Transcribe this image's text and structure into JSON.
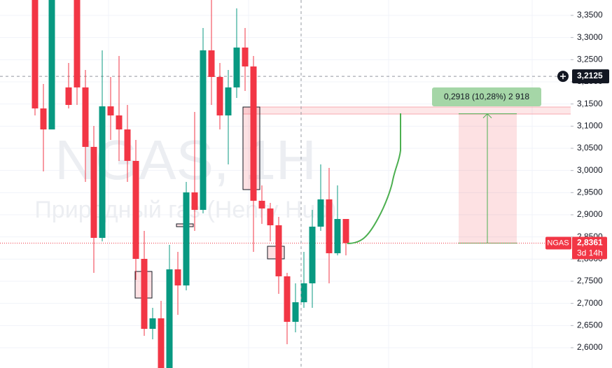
{
  "chart_data": {
    "type": "candlestick",
    "title": "NGAS, 1H",
    "subtitle": "Природный газ (Henry Hub)",
    "categories": [
      null,
      null,
      null,
      null,
      null,
      null,
      null,
      null,
      null,
      null,
      null,
      null,
      null,
      null,
      null,
      null,
      null,
      null,
      null,
      null,
      null,
      null,
      null,
      null,
      null,
      null,
      null,
      null,
      null,
      null,
      null,
      null,
      null,
      null,
      null,
      null,
      null,
      null
    ],
    "open": [
      3.4005,
      3.14,
      3.0926,
      null,
      3.1874,
      3.4005,
      3.1874,
      3.0532,
      2.8479,
      3.1447,
      3.1242,
      3.0926,
      3.0216,
      2.8005,
      2.6426,
      2.6663,
      2.5479,
      2.7768,
      2.7405,
      2.9505,
      2.9111,
      3.2711,
      3.211,
      3.1242,
      3.1874,
      3.2774,
      3.2347,
      2.9316,
      2.9142,
      2.8763,
      2.7611,
      2.6584,
      2.7026,
      2.7453,
      2.8732,
      2.9347,
      2.8132,
      2.8905
    ],
    "high": [
      3.4005,
      3.1953,
      3.4005,
      null,
      3.2426,
      3.4005,
      3.2268,
      3.1005,
      3.2711,
      3.211,
      3.2584,
      3.1479,
      3.0689,
      2.8637,
      2.69,
      2.7058,
      2.8321,
      2.8163,
      2.9742,
      3.1321,
      3.3216,
      3.3847,
      3.2426,
      3.2268,
      3.3658,
      3.3216,
      3.2584,
      2.9663,
      2.9268,
      2.8953,
      2.7689,
      2.7453,
      2.8163,
      2.9111,
      3.0137,
      3.0058,
      2.9663,
      2.8905
    ],
    "low": [
      3.1242,
      2.9979,
      3.0926,
      null,
      3.14,
      3.1479,
      2.9742,
      2.7689,
      2.84,
      3.0689,
      3.0216,
      2.9742,
      2.7532,
      2.6268,
      2.619,
      2.5321,
      2.5321,
      2.6742,
      2.7295,
      2.8637,
      2.9032,
      3.1479,
      3.0926,
      3.0137,
      3.1637,
      3.1795,
      2.8163,
      2.8795,
      2.84,
      2.7216,
      2.6079,
      2.6347,
      2.69,
      2.69,
      2.8637,
      2.7453,
      2.8084,
      2.8084
    ],
    "close": [
      3.14,
      3.0926,
      3.4005,
      null,
      3.1479,
      3.1874,
      3.0532,
      2.8479,
      3.1447,
      3.1242,
      3.0926,
      3.0216,
      2.8005,
      2.6426,
      2.6663,
      2.5479,
      2.7768,
      2.7405,
      2.9505,
      2.9111,
      3.2711,
      3.211,
      3.1242,
      3.1874,
      3.2774,
      3.2347,
      2.9316,
      2.9142,
      2.8763,
      2.7611,
      2.6584,
      2.7026,
      2.7453,
      2.8732,
      2.9347,
      2.8132,
      2.8905,
      2.8361
    ],
    "up_color": "#089981",
    "down_color": "#f23645",
    "ylim": [
      2.5542,
      3.3847
    ],
    "yticks": [
      {
        "value": 3.35,
        "label": "3,3500"
      },
      {
        "value": 3.3,
        "label": "3,3000"
      },
      {
        "value": 3.25,
        "label": "3,2500"
      },
      {
        "value": 3.2,
        "label": "3,2000"
      },
      {
        "value": 3.15,
        "label": "3,1500"
      },
      {
        "value": 3.1,
        "label": "3,1000"
      },
      {
        "value": 3.05,
        "label": "3,0500"
      },
      {
        "value": 3.0,
        "label": "3,0000"
      },
      {
        "value": 2.95,
        "label": "2,9500"
      },
      {
        "value": 2.9,
        "label": "2,9000"
      },
      {
        "value": 2.85,
        "label": "2,8500"
      },
      {
        "value": 2.8,
        "label": "2,8000"
      },
      {
        "value": 2.75,
        "label": "2,7500"
      },
      {
        "value": 2.7,
        "label": "2,7000"
      },
      {
        "value": 2.65,
        "label": "2,6500"
      },
      {
        "value": 2.6,
        "label": "2,6000"
      }
    ],
    "grid": true,
    "crosshair": {
      "value": 3.2125,
      "label": "3,2125"
    },
    "last_price": {
      "symbol": "NGAS",
      "value": 2.8361,
      "label": "2,8361",
      "countdown": "3d 14h"
    },
    "measure": {
      "low": 2.8361,
      "high": 3.1279,
      "label": "0,2918 (10,28%) 2 918"
    }
  }
}
